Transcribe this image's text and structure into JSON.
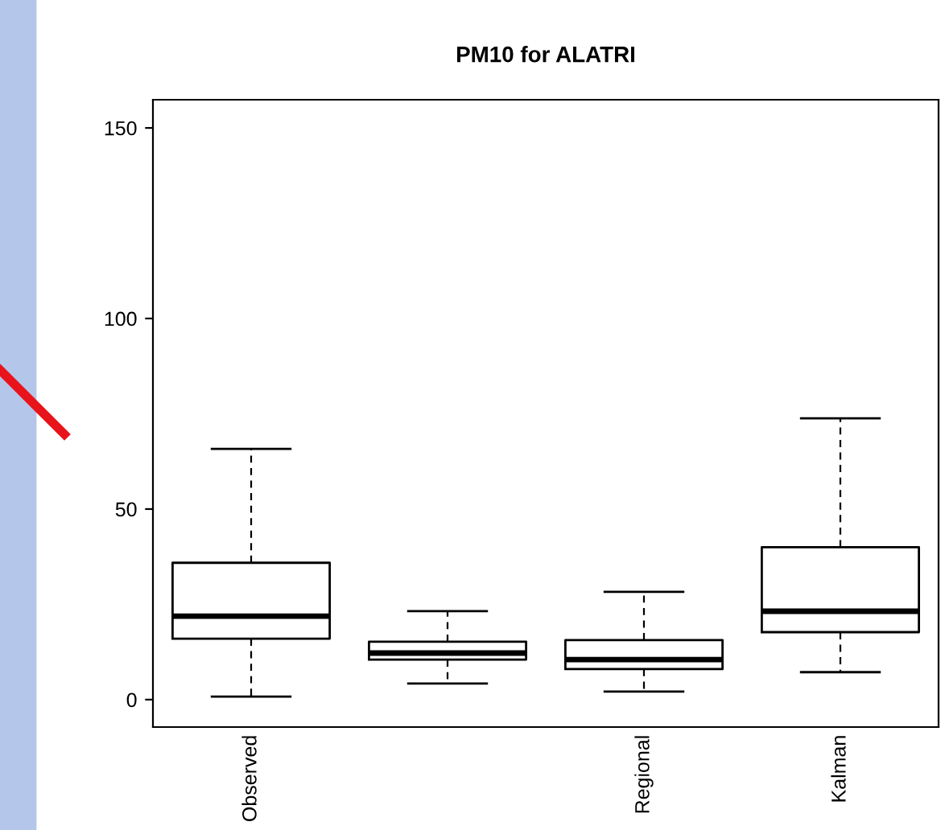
{
  "chart_data": {
    "type": "box",
    "title": "PM10 for ALATRI",
    "categories": [
      "Observed",
      null,
      "Regional",
      "Kalman"
    ],
    "boxes": [
      {
        "low": 0.8,
        "q1": 16,
        "median": 21.9,
        "q3": 35.9,
        "high": 65.8
      },
      {
        "low": 4.2,
        "q1": 10.5,
        "median": 12.2,
        "q3": 15.2,
        "high": 23.2
      },
      {
        "low": 2.1,
        "q1": 8,
        "median": 10.5,
        "q3": 15.6,
        "high": 28.3
      },
      {
        "low": 7.2,
        "q1": 17.7,
        "median": 23.2,
        "q3": 40,
        "high": 73.8
      }
    ],
    "ylim": [
      -7.2,
      157.4
    ],
    "yticks": [
      0,
      50,
      100,
      150
    ],
    "grid": false,
    "legend": false
  }
}
